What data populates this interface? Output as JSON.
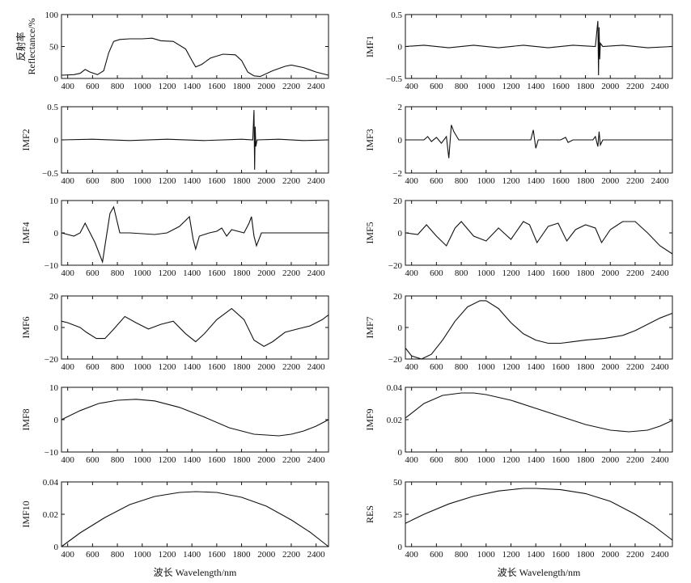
{
  "figure": {
    "xlabel": "波长 Wavelength/nm",
    "x_ticks": [
      400,
      600,
      800,
      1000,
      1200,
      1400,
      1600,
      1800,
      2000,
      2200,
      2400
    ],
    "xlim": [
      350,
      2500
    ]
  },
  "chart_data": [
    {
      "id": "reflectance",
      "type": "line",
      "ylabel": "反射率\nReflectance/%",
      "ylim": [
        0,
        100
      ],
      "y_ticks": [
        0,
        50,
        100
      ],
      "y_tick_labels": [
        "0",
        "50",
        "100"
      ],
      "x": [
        350,
        450,
        500,
        540,
        580,
        640,
        690,
        730,
        770,
        820,
        900,
        1000,
        1080,
        1150,
        1250,
        1350,
        1400,
        1430,
        1480,
        1550,
        1650,
        1750,
        1800,
        1850,
        1900,
        1950,
        2050,
        2150,
        2200,
        2300,
        2400,
        2500
      ],
      "y": [
        5,
        6,
        8,
        14,
        10,
        6,
        12,
        40,
        58,
        61,
        62,
        62,
        63,
        59,
        58,
        46,
        28,
        18,
        22,
        32,
        38,
        37,
        28,
        10,
        4,
        3,
        12,
        19,
        21,
        17,
        10,
        5
      ]
    },
    {
      "id": "imf1",
      "type": "line",
      "ylabel": "IMF1",
      "ylim": [
        -0.5,
        0.5
      ],
      "y_ticks": [
        -0.5,
        0,
        0.5
      ],
      "y_tick_labels": [
        "−0.5",
        "0",
        "0.5"
      ],
      "x": [
        350,
        500,
        700,
        900,
        1100,
        1300,
        1500,
        1700,
        1880,
        1900,
        1905,
        1910,
        1915,
        1920,
        1940,
        2100,
        2300,
        2500
      ],
      "y": [
        0,
        0.02,
        -0.02,
        0.02,
        -0.02,
        0.02,
        -0.02,
        0.02,
        0,
        0.4,
        -0.45,
        0.3,
        -0.2,
        0.05,
        0,
        0.02,
        -0.02,
        0
      ]
    },
    {
      "id": "imf2",
      "type": "line",
      "ylabel": "IMF2",
      "ylim": [
        -0.5,
        0.5
      ],
      "y_ticks": [
        -0.5,
        0,
        0.5
      ],
      "y_tick_labels": [
        "−0.5",
        "0",
        "0.5"
      ],
      "x": [
        350,
        600,
        900,
        1200,
        1500,
        1800,
        1890,
        1900,
        1905,
        1910,
        1915,
        1925,
        2100,
        2300,
        2500
      ],
      "y": [
        0,
        0.01,
        -0.01,
        0.01,
        -0.01,
        0.01,
        0,
        0.45,
        -0.45,
        0.2,
        -0.1,
        0,
        0.01,
        -0.01,
        0
      ]
    },
    {
      "id": "imf3",
      "type": "line",
      "ylabel": "IMF3",
      "ylim": [
        -2,
        2
      ],
      "y_ticks": [
        -2,
        0,
        2
      ],
      "y_tick_labels": [
        "−2",
        "0",
        "2"
      ],
      "x": [
        350,
        500,
        530,
        560,
        600,
        640,
        680,
        700,
        720,
        740,
        780,
        1300,
        1360,
        1380,
        1400,
        1420,
        1460,
        1600,
        1640,
        1660,
        1700,
        1860,
        1880,
        1900,
        1910,
        1920,
        1940,
        2500
      ],
      "y": [
        0,
        0,
        0.2,
        -0.1,
        0.15,
        -0.2,
        0.2,
        -1.1,
        0.9,
        0.5,
        0,
        0,
        0,
        0.6,
        -0.5,
        0,
        0,
        0,
        0.15,
        -0.15,
        0,
        0,
        0.2,
        -0.4,
        0.5,
        -0.3,
        0,
        0
      ]
    },
    {
      "id": "imf4",
      "type": "line",
      "ylabel": "IMF4",
      "ylim": [
        -10,
        10
      ],
      "y_ticks": [
        -10,
        0,
        10
      ],
      "y_tick_labels": [
        "−10",
        "0",
        "10"
      ],
      "x": [
        350,
        450,
        500,
        540,
        580,
        620,
        660,
        680,
        700,
        740,
        770,
        820,
        900,
        1100,
        1200,
        1300,
        1380,
        1410,
        1430,
        1460,
        1540,
        1600,
        1640,
        1680,
        1720,
        1820,
        1860,
        1880,
        1900,
        1920,
        1960,
        2100,
        2300,
        2500
      ],
      "y": [
        0,
        -1,
        0,
        3,
        0,
        -3,
        -7,
        -9,
        -4,
        6,
        8,
        0,
        0,
        -0.5,
        0,
        2,
        5,
        -2,
        -5,
        -1,
        0,
        0.5,
        1.5,
        -1,
        1,
        0,
        3,
        5,
        -1,
        -4,
        0,
        0,
        0,
        0
      ]
    },
    {
      "id": "imf5",
      "type": "line",
      "ylabel": "IMF5",
      "ylim": [
        -20,
        20
      ],
      "y_ticks": [
        -20,
        0,
        20
      ],
      "y_tick_labels": [
        "−20",
        "0",
        "20"
      ],
      "x": [
        350,
        450,
        520,
        600,
        680,
        750,
        800,
        900,
        1000,
        1100,
        1200,
        1300,
        1350,
        1410,
        1500,
        1580,
        1650,
        1720,
        1800,
        1880,
        1930,
        2000,
        2100,
        2200,
        2300,
        2400,
        2500
      ],
      "y": [
        0,
        -1,
        5,
        -2,
        -8,
        3,
        7,
        -2,
        -5,
        3,
        -4,
        7,
        5,
        -6,
        4,
        6,
        -5,
        2,
        5,
        3,
        -6,
        2,
        7,
        7,
        0,
        -8,
        -13
      ]
    },
    {
      "id": "imf6",
      "type": "line",
      "ylabel": "IMF6",
      "ylim": [
        -20,
        20
      ],
      "y_ticks": [
        -20,
        0,
        20
      ],
      "y_tick_labels": [
        "−20",
        "0",
        "20"
      ],
      "x": [
        350,
        400,
        500,
        550,
        630,
        700,
        760,
        860,
        950,
        1050,
        1150,
        1250,
        1350,
        1430,
        1500,
        1600,
        1720,
        1820,
        1900,
        1980,
        2050,
        2150,
        2250,
        2350,
        2450,
        2500
      ],
      "y": [
        4,
        3,
        0,
        -3,
        -7,
        -7,
        -2,
        7,
        3,
        -1,
        2,
        4,
        -4,
        -9,
        -4,
        5,
        12,
        5,
        -8,
        -12,
        -9,
        -3,
        -1,
        1,
        5,
        8
      ]
    },
    {
      "id": "imf7",
      "type": "line",
      "ylabel": "IMF7",
      "ylim": [
        -20,
        20
      ],
      "y_ticks": [
        -20,
        0,
        20
      ],
      "y_tick_labels": [
        "−20",
        "0",
        "20"
      ],
      "x": [
        350,
        400,
        480,
        560,
        650,
        750,
        850,
        950,
        1000,
        1100,
        1200,
        1300,
        1400,
        1500,
        1600,
        1700,
        1800,
        1950,
        2100,
        2200,
        2300,
        2400,
        2500
      ],
      "y": [
        -13,
        -18,
        -20,
        -17,
        -8,
        4,
        13,
        17,
        17,
        12,
        3,
        -4,
        -8,
        -10,
        -10,
        -9,
        -8,
        -7,
        -5,
        -2,
        2,
        6,
        9
      ]
    },
    {
      "id": "imf8",
      "type": "line",
      "ylabel": "IMF8",
      "ylim": [
        -10,
        10
      ],
      "y_ticks": [
        -10,
        0,
        10
      ],
      "y_tick_labels": [
        "−10",
        "0",
        "10"
      ],
      "x": [
        350,
        500,
        650,
        800,
        950,
        1100,
        1300,
        1500,
        1700,
        1900,
        2100,
        2200,
        2300,
        2400,
        2500
      ],
      "y": [
        0,
        2.8,
        5,
        6,
        6.3,
        5.8,
        3.8,
        0.8,
        -2.5,
        -4.5,
        -5,
        -4.5,
        -3.5,
        -2,
        0
      ]
    },
    {
      "id": "imf9",
      "type": "line",
      "ylabel": "IMF9",
      "ylim": [
        0,
        0.04
      ],
      "y_ticks": [
        0,
        0.02,
        0.04
      ],
      "y_tick_labels": [
        "0",
        "0.02",
        "0.04"
      ],
      "x": [
        350,
        500,
        650,
        800,
        900,
        1000,
        1200,
        1400,
        1600,
        1800,
        2000,
        2150,
        2300,
        2400,
        2500
      ],
      "y": [
        0.021,
        0.03,
        0.035,
        0.0365,
        0.0365,
        0.0355,
        0.032,
        0.027,
        0.022,
        0.017,
        0.0135,
        0.0125,
        0.0135,
        0.016,
        0.0195
      ]
    },
    {
      "id": "imf10",
      "type": "line",
      "ylabel": "IMF10",
      "ylim": [
        0,
        0.04
      ],
      "y_ticks": [
        0,
        0.02,
        0.04
      ],
      "y_tick_labels": [
        "0",
        "0.02",
        "0.04"
      ],
      "x": [
        350,
        500,
        700,
        900,
        1100,
        1300,
        1430,
        1600,
        1800,
        2000,
        2200,
        2350,
        2500
      ],
      "y": [
        0,
        0.0085,
        0.018,
        0.026,
        0.031,
        0.0335,
        0.034,
        0.0335,
        0.0305,
        0.025,
        0.0165,
        0.009,
        0
      ]
    },
    {
      "id": "res",
      "type": "line",
      "ylabel": "RES",
      "ylim": [
        0,
        50
      ],
      "y_ticks": [
        0,
        25,
        50
      ],
      "y_tick_labels": [
        "0",
        "25",
        "50"
      ],
      "x": [
        350,
        500,
        700,
        900,
        1100,
        1300,
        1400,
        1600,
        1800,
        2000,
        2200,
        2350,
        2500
      ],
      "y": [
        18,
        25,
        33,
        39,
        43,
        45,
        45,
        44,
        41,
        35,
        25,
        16,
        5
      ]
    }
  ]
}
